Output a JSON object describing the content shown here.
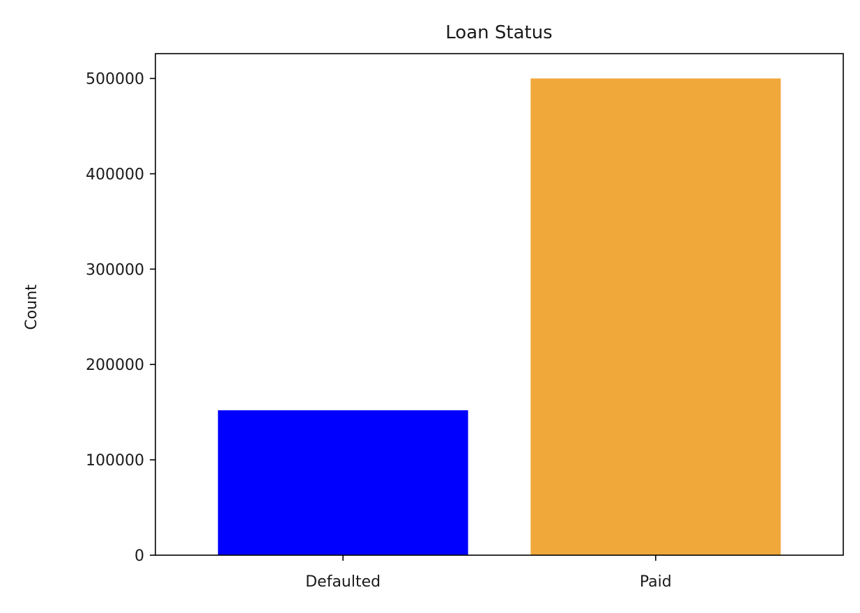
{
  "chart_data": {
    "type": "bar",
    "title": "Loan Status",
    "xlabel": "",
    "ylabel": "Count",
    "categories": [
      "Defaulted",
      "Paid"
    ],
    "values": [
      152000,
      500000
    ],
    "colors": [
      "#0000ff",
      "#f0a83b"
    ],
    "ylim": [
      0,
      526000
    ],
    "yticks": [
      0,
      100000,
      200000,
      300000,
      400000,
      500000
    ],
    "ytick_labels": [
      "0",
      "100000",
      "200000",
      "300000",
      "400000",
      "500000"
    ],
    "grid": false,
    "legend": "none"
  }
}
